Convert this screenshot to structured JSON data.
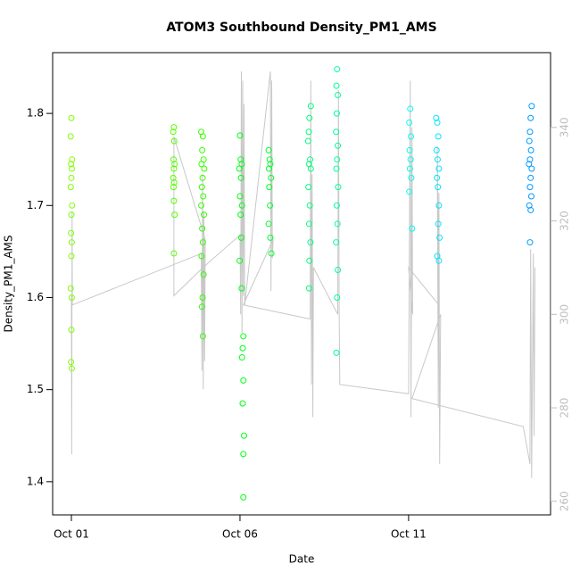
{
  "chart_data": {
    "type": "scatter",
    "title": "ATOM3 Southbound Density_PM1_AMS",
    "x_label": "Date",
    "y_label": "Density_PM1_AMS",
    "xlim": [
      0.444,
      15.21
    ],
    "xticks": [
      {
        "value": 1,
        "label": "Oct 01"
      },
      {
        "value": 6,
        "label": "Oct 06"
      },
      {
        "value": 11,
        "label": "Oct 11"
      }
    ],
    "ylim": [
      1.364,
      1.866
    ],
    "yticks": [
      1.4,
      1.5,
      1.6,
      1.7,
      1.8
    ],
    "y2lim": [
      257.1,
      356.0
    ],
    "y2ticks": [
      260,
      280,
      300,
      320,
      340
    ],
    "y2_color": "#bebebe",
    "series": [
      {
        "color": "#b3e600",
        "axis": "y2",
        "type": "line",
        "x": [
          1.0,
          1.01,
          1.02,
          1.03,
          4.85,
          4.87,
          4.89,
          4.91,
          4.93,
          4.95,
          4.97,
          4.04,
          4.04,
          4.9,
          6.0,
          6.02,
          6.04,
          6.06,
          6.08,
          6.1,
          6.12,
          6.14,
          6.9,
          6.92,
          6.94,
          6.96,
          6.98,
          6.1,
          8.08,
          8.1,
          8.12,
          8.14,
          8.16,
          8.18,
          8.9,
          8.92,
          8.94,
          8.96,
          11.0,
          11.05,
          11.07,
          11.1,
          11.12,
          11.0,
          11.9,
          11.85,
          11.88,
          11.9,
          11.92,
          11.95,
          11.1,
          14.4,
          14.6,
          14.62,
          14.65,
          14.7,
          14.72,
          14.75
        ],
        "values": [
          304,
          270,
          322,
          302,
          313,
          288,
          330,
          284,
          322,
          290,
          316,
          338,
          304,
          310,
          317,
          300,
          352,
          296,
          350,
          304,
          345,
          302,
          352,
          305,
          350,
          312,
          316,
          302,
          299,
          350,
          285,
          330,
          278,
          310,
          300,
          348,
          300,
          285,
          283,
          350,
          278,
          340,
          300,
          310,
          302,
          336,
          280,
          326,
          268,
          300,
          282,
          276,
          268,
          314,
          265,
          313,
          274,
          310
        ]
      },
      {
        "color": "#80ff00",
        "x": [
          1.0,
          0.98,
          1.02,
          0.99,
          1.01,
          1.0,
          0.98,
          1.02,
          1.0,
          0.99,
          1.01,
          1.0,
          0.98,
          1.01,
          1.0,
          0.99,
          1.01
        ],
        "values": [
          1.795,
          1.775,
          1.75,
          1.745,
          1.74,
          1.73,
          1.72,
          1.7,
          1.69,
          1.67,
          1.66,
          1.645,
          1.61,
          1.6,
          1.565,
          1.53,
          1.523
        ]
      },
      {
        "color": "#55ff00",
        "x": [
          4.04,
          4.02,
          4.05,
          4.03,
          4.06,
          4.04,
          4.02,
          4.05,
          4.03,
          4.04,
          4.06,
          4.04
        ],
        "values": [
          1.785,
          1.78,
          1.77,
          1.75,
          1.745,
          1.74,
          1.73,
          1.725,
          1.72,
          1.705,
          1.69,
          1.648
        ]
      },
      {
        "color": "#33ff00",
        "x": [
          4.85,
          4.9,
          4.88,
          4.92,
          4.86,
          4.94,
          4.89,
          4.87,
          4.91,
          4.85,
          4.93,
          4.88,
          4.9,
          4.86,
          4.92,
          4.89,
          4.87,
          4.9
        ],
        "values": [
          1.78,
          1.775,
          1.76,
          1.75,
          1.745,
          1.74,
          1.73,
          1.72,
          1.71,
          1.7,
          1.69,
          1.675,
          1.66,
          1.645,
          1.625,
          1.6,
          1.59,
          1.558
        ]
      },
      {
        "color": "#00ff15",
        "x": [
          6.0,
          6.02,
          6.05,
          5.98,
          6.03,
          6.0,
          6.06,
          6.02,
          6.04,
          5.99,
          6.05,
          6.1,
          6.08,
          6.06,
          6.1,
          6.08,
          6.12,
          6.1,
          6.1
        ],
        "values": [
          1.776,
          1.75,
          1.745,
          1.74,
          1.73,
          1.71,
          1.7,
          1.69,
          1.665,
          1.64,
          1.61,
          1.558,
          1.545,
          1.535,
          1.51,
          1.485,
          1.45,
          1.43,
          1.383
        ]
      },
      {
        "color": "#00ff2a",
        "x": [
          6.85,
          6.88,
          6.9,
          6.86,
          6.92,
          6.87,
          6.89,
          6.85,
          6.9,
          6.93
        ],
        "values": [
          1.76,
          1.75,
          1.745,
          1.74,
          1.73,
          1.72,
          1.7,
          1.68,
          1.665,
          1.648
        ]
      },
      {
        "color": "#00ff80",
        "x": [
          8.1,
          8.06,
          8.04,
          8.02,
          8.08,
          8.05,
          8.1,
          8.03,
          8.07,
          8.05,
          8.09,
          8.06,
          8.05
        ],
        "values": [
          1.808,
          1.795,
          1.78,
          1.77,
          1.75,
          1.745,
          1.74,
          1.72,
          1.7,
          1.68,
          1.66,
          1.64,
          1.61
        ]
      },
      {
        "color": "#00ff99",
        "x": [
          8.88,
          8.86,
          8.9,
          8.87,
          8.85,
          8.9,
          8.88,
          8.86,
          8.91,
          8.87,
          8.89,
          8.85,
          8.9,
          8.88,
          8.86
        ],
        "values": [
          1.848,
          1.83,
          1.82,
          1.8,
          1.78,
          1.765,
          1.75,
          1.74,
          1.72,
          1.7,
          1.68,
          1.66,
          1.63,
          1.6,
          1.54
        ]
      },
      {
        "color": "#00ffee",
        "x": [
          11.05,
          11.02,
          11.07,
          11.03,
          11.06,
          11.04,
          11.08,
          11.02,
          11.1
        ],
        "values": [
          1.805,
          1.79,
          1.775,
          1.76,
          1.75,
          1.74,
          1.73,
          1.715,
          1.675
        ]
      },
      {
        "color": "#00e5ff",
        "x": [
          11.82,
          11.85,
          11.88,
          11.83,
          11.86,
          11.9,
          11.84,
          11.87,
          11.9,
          11.88,
          11.92,
          11.85,
          11.9
        ],
        "values": [
          1.795,
          1.79,
          1.775,
          1.76,
          1.75,
          1.74,
          1.73,
          1.72,
          1.7,
          1.68,
          1.665,
          1.645,
          1.64
        ]
      },
      {
        "color": "#0099ff",
        "x": [
          14.65,
          14.62,
          14.6,
          14.58,
          14.63,
          14.6,
          14.57,
          14.65,
          14.62,
          14.6,
          14.64,
          14.58,
          14.62,
          14.6
        ],
        "values": [
          1.808,
          1.795,
          1.78,
          1.77,
          1.76,
          1.75,
          1.745,
          1.74,
          1.73,
          1.72,
          1.71,
          1.7,
          1.695,
          1.66
        ]
      }
    ]
  }
}
